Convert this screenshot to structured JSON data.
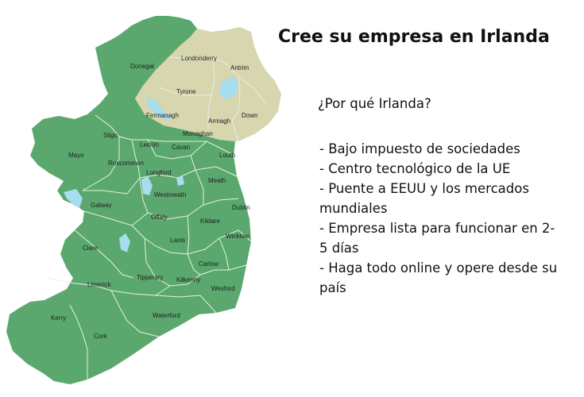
{
  "title": "Cree su empresa en Irlanda",
  "subtitle": "¿Por qué Irlanda?",
  "reasons": [
    "- Bajo impuesto de sociedades",
    "- Centro tecnológico de la UE",
    "- Puente a EEUU y los mercados mundiales",
    "- Empresa lista para funcionar en 2-5 días",
    "- Haga todo online y opere desde su país"
  ],
  "map": {
    "colors": {
      "republic": "#5aa86d",
      "northern_ireland": "#d7d6ae",
      "lakes": "#a8dcef",
      "borders": "#e8f0e4"
    },
    "counties": {
      "donegal": "Donegal",
      "londonderry": "Londonderry",
      "antrim": "Antrim",
      "tyrone": "Tyrone",
      "fermanagh": "Fermanagh",
      "armagh": "Armagh",
      "down": "Down",
      "monaghan": "Monaghan",
      "sligo": "Sligo",
      "leitrim": "Leitrim",
      "cavan": "Cavan",
      "louth": "Louth",
      "mayo": "Mayo",
      "roscommon": "Roscommon",
      "longford": "Longford",
      "meath": "Meath",
      "westmeath": "Westmeath",
      "galway": "Galway",
      "dublin": "Dublin",
      "offaly": "Offaly",
      "kildare": "Kildare",
      "laois": "Laois",
      "wicklow": "Wicklow",
      "clare": "Clare",
      "carlow": "Carlow",
      "tipperary": "Tipperary",
      "limerick": "Limerick",
      "kilkenny": "Kilkenny",
      "wexford": "Wexford",
      "waterford": "Waterford",
      "kerry": "Kerry",
      "cork": "Cork"
    }
  }
}
